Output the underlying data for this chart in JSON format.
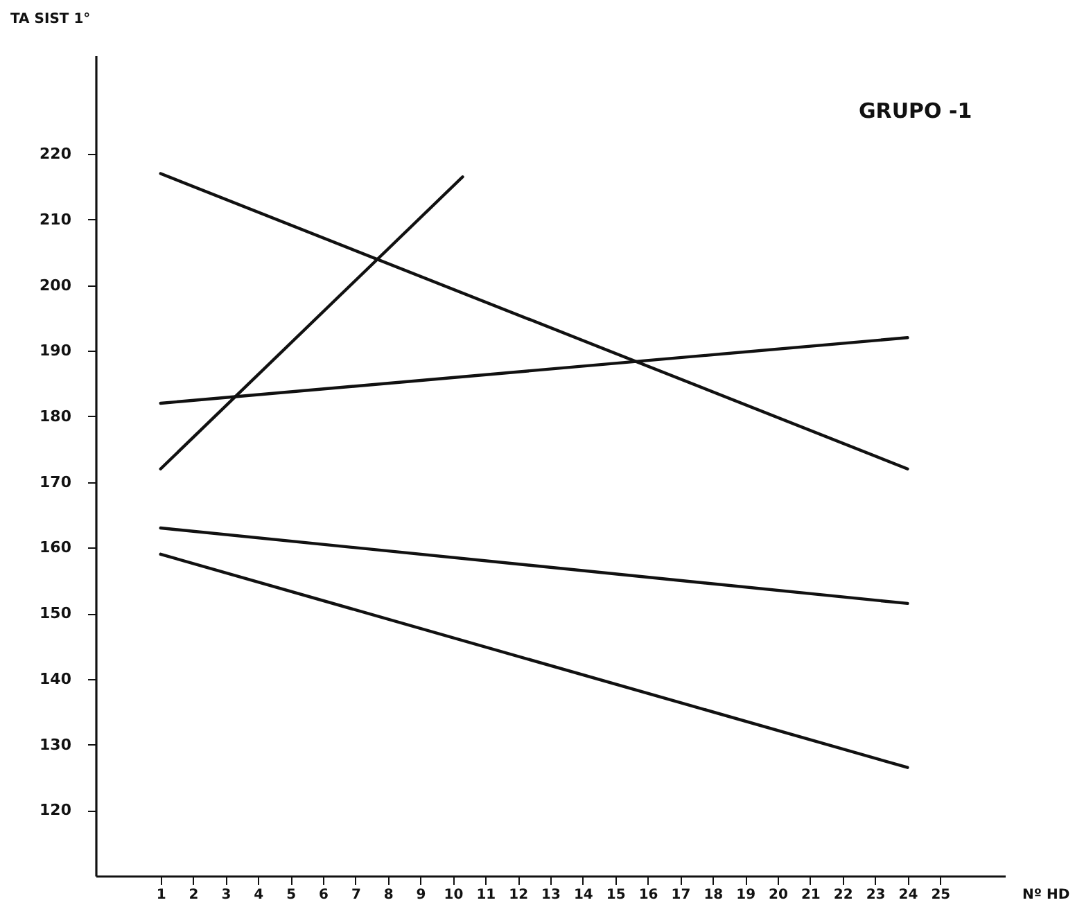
{
  "chart_data": {
    "type": "line",
    "title": "GRUPO -1",
    "xlabel": "Nº HD",
    "ylabel": "TA SIST 1°",
    "xlim": [
      -1,
      27
    ],
    "xticks": [
      1,
      2,
      3,
      4,
      5,
      6,
      7,
      8,
      9,
      10,
      11,
      12,
      13,
      14,
      15,
      16,
      17,
      18,
      19,
      20,
      21,
      22,
      23,
      24,
      25
    ],
    "ylim": [
      110,
      235
    ],
    "yticks": [
      120,
      130,
      140,
      150,
      160,
      170,
      180,
      190,
      200,
      210,
      220
    ],
    "grid": false,
    "marker": "none",
    "line_style": "solid",
    "series": [
      {
        "color": "#111111",
        "x": [
          1,
          24
        ],
        "values": [
          217,
          172
        ]
      },
      {
        "color": "#111111",
        "x": [
          1,
          10.3
        ],
        "values": [
          172,
          216.5
        ]
      },
      {
        "color": "#111111",
        "x": [
          1,
          24
        ],
        "values": [
          182,
          192
        ]
      },
      {
        "color": "#111111",
        "x": [
          1,
          24
        ],
        "values": [
          163,
          151.5
        ]
      },
      {
        "color": "#111111",
        "x": [
          1,
          24
        ],
        "values": [
          159,
          126.5
        ]
      }
    ]
  }
}
